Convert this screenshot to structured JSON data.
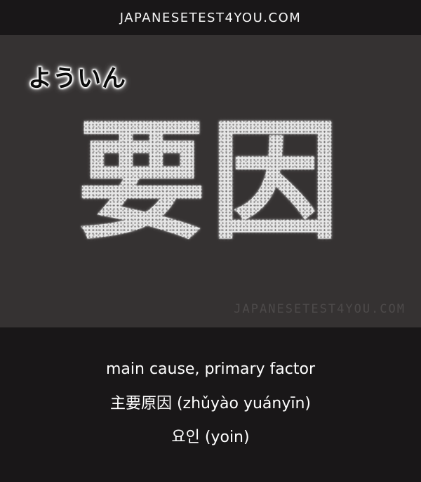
{
  "header": {
    "site": "JAPANESETEST4YOU.COM"
  },
  "card": {
    "reading": "ようい​ん",
    "kanji": "要因",
    "watermark": "JAPANESETEST4YOU.COM"
  },
  "definition": {
    "english": "main cause, primary factor",
    "chinese": "主要原因 (zhǔyào yuányīn)",
    "korean": "요인 (yoin)"
  }
}
